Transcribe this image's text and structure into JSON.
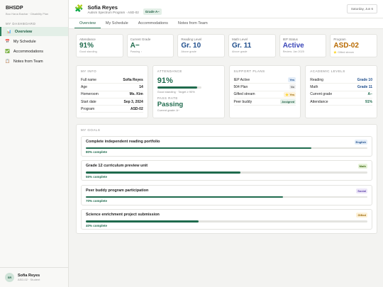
{
  "sidebar": {
    "brand": "BHSDP",
    "subtitle": "Boo Hana Bashar · Disability Plan",
    "section": "MY DASHBOARD",
    "nav": [
      "Overview",
      "My Schedule",
      "Accommodations",
      "Notes from Team"
    ],
    "user": {
      "initials": "SR",
      "name": "Sofia Reyes",
      "role": "ASD-02 · Student"
    }
  },
  "header": {
    "name": "Sofia Reyes",
    "program": "Autism Spectrum Program · ASD-02",
    "badge": "Grade A−",
    "date": "Saturday, Jun 6"
  },
  "tabs": [
    "Overview",
    "My Schedule",
    "Accommodations",
    "Notes from Team"
  ],
  "stats": [
    {
      "label": "Attendance",
      "value": "91%",
      "note": "Good standing"
    },
    {
      "label": "Current Grade",
      "value": "A−",
      "note": "Passing ↑"
    },
    {
      "label": "Reading Level",
      "value": "Gr. 10",
      "note": "Above grade"
    },
    {
      "label": "Math Level",
      "value": "Gr. 11",
      "note": "Above grade"
    },
    {
      "label": "IEP Status",
      "value": "Active",
      "note": "Review: Jan 2025"
    },
    {
      "label": "Program",
      "value": "ASD-02",
      "note": "⭐ Gifted stream"
    }
  ],
  "my_info": {
    "title": "MY INFO",
    "rows": [
      [
        "Full name",
        "Sofia Reyes"
      ],
      [
        "Age",
        "14"
      ],
      [
        "Homeroom",
        "Ms. Kim"
      ],
      [
        "Start date",
        "Sep 3, 2024"
      ],
      [
        "Program",
        "ASD-02"
      ]
    ]
  },
  "attendance": {
    "title": "ATTENDANCE",
    "value": 91,
    "value_label": "91%",
    "note": "Good standing · Target ≥ 90%",
    "pass_title": "PASS RATE",
    "pass_value": "Passing",
    "pass_note": "Current grade: A−"
  },
  "support": {
    "title": "SUPPORT PLANS",
    "rows": [
      [
        "IEP Active",
        "Yes"
      ],
      [
        "504 Plan",
        "No"
      ],
      [
        "Gifted stream",
        "⭐ Yes"
      ],
      [
        "Peer buddy",
        "Assigned"
      ]
    ]
  },
  "academic": {
    "title": "ACADEMIC LEVELS",
    "rows": [
      [
        "Reading",
        "Grade 10"
      ],
      [
        "Math",
        "Grade 11"
      ],
      [
        "Current grade",
        "A−"
      ],
      [
        "Attendance",
        "91%"
      ]
    ]
  },
  "goals": {
    "title": "MY GOALS",
    "items": [
      {
        "title": "Complete independent reading portfolio",
        "tag": "English",
        "progress": 80,
        "progress_label": "80% complete"
      },
      {
        "title": "Grade 12 curriculum preview unit",
        "tag": "Math",
        "progress": 55,
        "progress_label": "55% complete"
      },
      {
        "title": "Peer buddy program participation",
        "tag": "Social",
        "progress": 70,
        "progress_label": "70% complete"
      },
      {
        "title": "Science enrichment project submission",
        "tag": "Gifted",
        "progress": 40,
        "progress_label": "40% complete"
      }
    ]
  }
}
